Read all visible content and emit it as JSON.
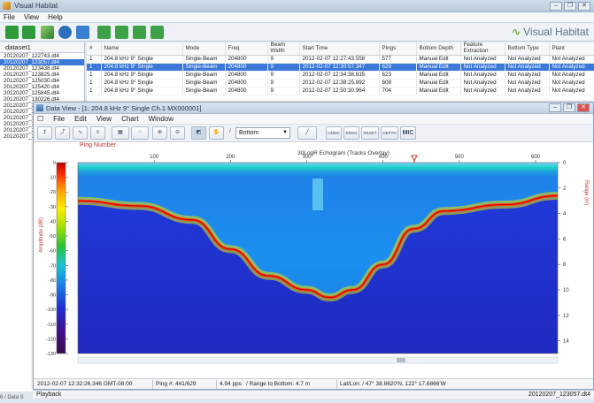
{
  "app": {
    "title": "Visual Habitat",
    "menus": [
      "File",
      "View",
      "Help"
    ],
    "brand": "Visual Habitat"
  },
  "datasets": {
    "header": "dataset1",
    "items": [
      "20120207_122743.dt4",
      "20120207_123057.dt4",
      "20120207_123438.dt4",
      "20120207_123825.dt4",
      "20120207_125030.dt4",
      "20120207_125420.dt4",
      "20120207_125845.dt4",
      "20120207_130226.dt4",
      "20120207_130...",
      "20120207_1...",
      "20120207_1...",
      "20120207_1...",
      "20120207_1...",
      "20120207_1..."
    ],
    "selected_index": 1
  },
  "file_table": {
    "columns": [
      "#",
      "Name",
      "Mode",
      "Freq",
      "Beam Width",
      "Start Time",
      "Pings",
      "Bottom Depth",
      "Feature Extraction",
      "Bottom Type",
      "Plant"
    ],
    "rows": [
      [
        "1",
        "204.8 kHz 9° Single",
        "Single-Beam",
        "204800",
        "9",
        "2012-02-07 12:27:43.558",
        "577",
        "Manual Edit",
        "Not Analyzed",
        "Not Analyzed",
        "Not Analyzed"
      ],
      [
        "1",
        "204.8 kHz 9° Single",
        "Single-Beam",
        "204800",
        "9",
        "2012-02-07 12:30:57.347",
        "629",
        "Manual Edit",
        "Not Analyzed",
        "Not Analyzed",
        "Not Analyzed"
      ],
      [
        "1",
        "204.8 kHz 9° Single",
        "Single-Beam",
        "204800",
        "9",
        "2012-02-07 12:34:38.635",
        "623",
        "Manual Edit",
        "Not Analyzed",
        "Not Analyzed",
        "Not Analyzed"
      ],
      [
        "1",
        "204.8 kHz 9° Single",
        "Single-Beam",
        "204800",
        "9",
        "2012-02-07 12:38:25.992",
        "608",
        "Manual Edit",
        "Not Analyzed",
        "Not Analyzed",
        "Not Analyzed"
      ],
      [
        "1",
        "204.8 kHz 9° Single",
        "Single-Beam",
        "204800",
        "9",
        "2012-02-07 12:50:30.964",
        "704",
        "Manual Edit",
        "Not Analyzed",
        "Not Analyzed",
        "Not Analyzed"
      ]
    ],
    "selected_row": 1,
    "sort_column": "Start Time"
  },
  "data_view": {
    "title": "Data View - [1: 204.8 kHz 9° Single Ch.1 MX000001]",
    "menus": [
      "File",
      "Edit",
      "View",
      "Chart",
      "Window"
    ],
    "bottom_select": "Bottom",
    "toolbar_text_buttons": [
      "UNDO",
      "REDO",
      "RESET",
      "DEPTH",
      "MIC"
    ],
    "ping_label": "Ping Number"
  },
  "chart_data": {
    "type": "heatmap",
    "title": "30LogR Echogram (Tracks Overlay)",
    "xlabel": "Ping Number",
    "x_ticks": [
      100,
      200,
      300,
      400,
      500,
      600
    ],
    "xlim": [
      0,
      629
    ],
    "y_ticks_depth": [
      0,
      2,
      4,
      6,
      8,
      10,
      12,
      14
    ],
    "ylim_depth": [
      0,
      15
    ],
    "ylabel_right": "Range (m)",
    "colorbar": {
      "label": "Amplitude (dB)",
      "ticks": [
        0,
        -10,
        -20,
        -30,
        -40,
        -50,
        -60,
        -70,
        -80,
        -90,
        -100,
        -110,
        -120,
        -130
      ],
      "range": [
        -130,
        0
      ]
    },
    "bottom_track": {
      "ping": [
        0,
        80,
        150,
        200,
        250,
        300,
        330,
        360,
        400,
        440,
        480,
        560,
        629
      ],
      "depth": [
        3.0,
        3.4,
        4.5,
        6.8,
        8.9,
        10.0,
        10.6,
        10.0,
        8.0,
        5.2,
        3.8,
        3.3,
        2.6
      ]
    }
  },
  "status_bar": {
    "time": "2012-02-07 12:32:26.346 GMT-08:00",
    "ping": "Ping #: 441/629",
    "rate": "4.94 pps",
    "range": "/ Range to Bottom: 4.7 m",
    "latlon": "Lat/Lon: / 47° 38.8620'N, 122° 17.6866'W"
  },
  "playback": {
    "label": "Playback",
    "file": "20120207_123057.dt4"
  },
  "bottom_left_text": "6 / Data S"
}
